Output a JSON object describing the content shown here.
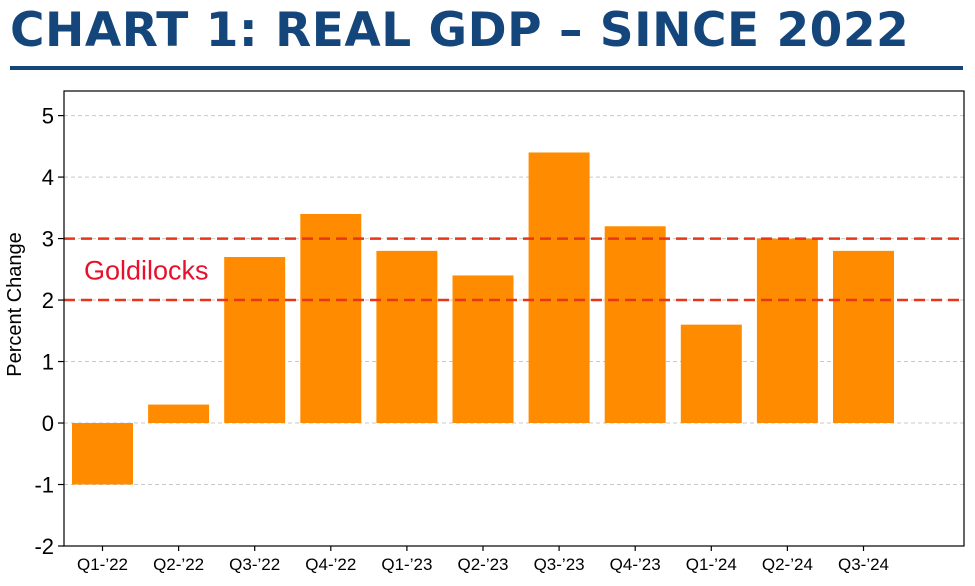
{
  "header": {
    "title": "CHART 1: REAL GDP – SINCE 2022"
  },
  "colors": {
    "title": "#14467c",
    "bar": "#ff8c00",
    "band_line": "#e8361a",
    "band_label": "#e8102a",
    "grid": "#c8c8c8"
  },
  "chart_data": {
    "type": "bar",
    "title": "CHART 1: REAL GDP – SINCE 2022",
    "xlabel": "",
    "ylabel": "Percent Change",
    "categories": [
      "Q1-’22",
      "Q2-’22",
      "Q3-’22",
      "Q4-’22",
      "Q1-’23",
      "Q2-’23",
      "Q3-’23",
      "Q4-’23",
      "Q1-’24",
      "Q2-’24",
      "Q3-’24"
    ],
    "values": [
      -1.0,
      0.3,
      2.7,
      3.4,
      2.8,
      2.4,
      4.4,
      3.2,
      1.6,
      3.0,
      2.8
    ],
    "ylim": [
      -2,
      5.4
    ],
    "yticks": [
      -2,
      -1,
      0,
      1,
      2,
      3,
      4,
      5
    ],
    "grid": true,
    "reference_lines": [
      2,
      3
    ],
    "annotations": [
      {
        "text": "Goldilocks",
        "band": [
          2,
          3
        ]
      }
    ]
  }
}
